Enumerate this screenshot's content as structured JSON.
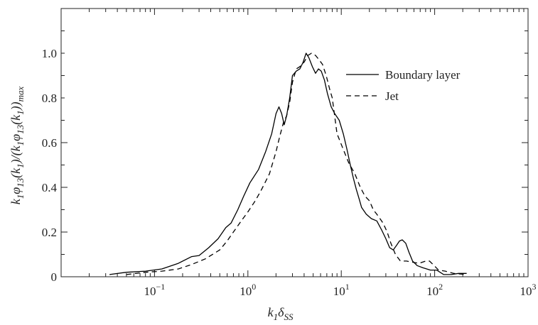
{
  "chart_data": {
    "type": "line",
    "title": "",
    "xlabel": "k₁δ_SS",
    "ylabel": "k₁φ₁₃(k₁)/(k₁φ₁₃(k₁))_max",
    "xscale": "log",
    "xlim": [
      0.01,
      1000
    ],
    "ylim": [
      0,
      1.2
    ],
    "x_ticks": [
      0.1,
      1,
      10,
      100,
      1000
    ],
    "x_tick_labels": [
      {
        "base": "10",
        "exp": "−1"
      },
      {
        "base": "10",
        "exp": "0"
      },
      {
        "base": "10",
        "exp": "1"
      },
      {
        "base": "10",
        "exp": "2"
      },
      {
        "base": "10",
        "exp": "3"
      }
    ],
    "y_ticks": [
      0,
      0.2,
      0.4,
      0.6,
      0.8,
      1.0
    ],
    "y_tick_labels": [
      "0",
      "0.2",
      "0.4",
      "0.6",
      "0.8",
      "1.0"
    ],
    "grid": false,
    "legend_position": "top-right",
    "series": [
      {
        "name": "Boundary layer",
        "style": "solid",
        "color": "#000000",
        "x": [
          0.033,
          0.05,
          0.08,
          0.12,
          0.18,
          0.25,
          0.3,
          0.38,
          0.48,
          0.58,
          0.66,
          0.78,
          0.9,
          1.05,
          1.3,
          1.55,
          1.8,
          2.0,
          2.15,
          2.3,
          2.45,
          2.6,
          2.8,
          3.0,
          3.3,
          3.6,
          3.9,
          4.2,
          4.5,
          4.9,
          5.3,
          5.7,
          6.1,
          6.6,
          7.1,
          7.8,
          8.5,
          9.5,
          10.5,
          11.5,
          12.5,
          13.5,
          14.5,
          15.5,
          16.5,
          18.5,
          21,
          24,
          27,
          30,
          33,
          36,
          39,
          42,
          45,
          49,
          53,
          58,
          65,
          75,
          90,
          105,
          125,
          150,
          180,
          220
        ],
        "y": [
          0.01,
          0.02,
          0.025,
          0.035,
          0.06,
          0.09,
          0.095,
          0.13,
          0.17,
          0.22,
          0.24,
          0.3,
          0.36,
          0.42,
          0.48,
          0.56,
          0.64,
          0.73,
          0.76,
          0.73,
          0.68,
          0.72,
          0.8,
          0.9,
          0.92,
          0.93,
          0.96,
          1.0,
          0.98,
          0.94,
          0.91,
          0.93,
          0.92,
          0.88,
          0.82,
          0.76,
          0.73,
          0.7,
          0.64,
          0.57,
          0.5,
          0.44,
          0.39,
          0.35,
          0.31,
          0.28,
          0.26,
          0.25,
          0.21,
          0.17,
          0.13,
          0.12,
          0.14,
          0.16,
          0.165,
          0.15,
          0.11,
          0.07,
          0.05,
          0.04,
          0.03,
          0.03,
          0.01,
          0.01,
          0.015,
          0.015
        ]
      },
      {
        "name": "Jet",
        "style": "dashed",
        "color": "#000000",
        "x": [
          0.05,
          0.08,
          0.12,
          0.18,
          0.25,
          0.35,
          0.5,
          0.6,
          0.7,
          0.85,
          1.0,
          1.2,
          1.4,
          1.7,
          2.0,
          2.2,
          2.4,
          2.6,
          2.8,
          3.0,
          3.3,
          3.6,
          4.0,
          4.4,
          4.8,
          5.3,
          5.8,
          6.3,
          6.9,
          7.5,
          8.0,
          9.0,
          10.5,
          12,
          14,
          16,
          18,
          20,
          22,
          25,
          28,
          31,
          34,
          38,
          43,
          50,
          58,
          68,
          80,
          88,
          96,
          110,
          130,
          160,
          220
        ],
        "y": [
          0.01,
          0.02,
          0.025,
          0.035,
          0.055,
          0.08,
          0.12,
          0.16,
          0.2,
          0.25,
          0.29,
          0.34,
          0.39,
          0.46,
          0.56,
          0.63,
          0.69,
          0.72,
          0.78,
          0.87,
          0.93,
          0.94,
          0.96,
          0.99,
          1.0,
          0.99,
          0.97,
          0.95,
          0.9,
          0.84,
          0.8,
          0.64,
          0.57,
          0.51,
          0.46,
          0.4,
          0.36,
          0.34,
          0.3,
          0.27,
          0.24,
          0.2,
          0.15,
          0.1,
          0.07,
          0.07,
          0.065,
          0.06,
          0.07,
          0.07,
          0.055,
          0.03,
          0.025,
          0.015,
          0.01
        ]
      }
    ]
  }
}
